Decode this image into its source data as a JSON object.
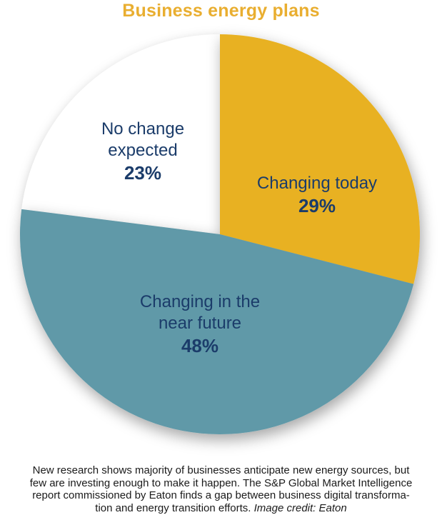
{
  "header": {
    "title": "Business energy plans"
  },
  "chart_data": {
    "type": "pie",
    "title": "Business energy plans",
    "start_angle_deg": 0,
    "direction": "clockwise",
    "legend_position": "labels-inside-slices",
    "slices": [
      {
        "label": "Changing today",
        "value": 29,
        "pct_label": "29%",
        "color": "#E8B122"
      },
      {
        "label": "Changing in the near future",
        "value": 48,
        "pct_label": "48%",
        "color": "#6099A8"
      },
      {
        "label": "No change expected",
        "value": 23,
        "pct_label": "23%",
        "color": "#FFFFFF"
      }
    ]
  },
  "caption": {
    "lines": [
      "New research shows majority of businesses anticipate new energy sources, but",
      "few are investing enough to make it happen. The S&P Global Market Intelligence",
      "report commissioned by Eaton finds a gap between business digital transforma-"
    ],
    "last_line": {
      "text": "tion and energy transition efforts. ",
      "credit": "Image credit: Eaton"
    }
  },
  "colors": {
    "title": "#E9AE30",
    "label_text": "#1B3C6A",
    "caption_text": "#1A1A1A",
    "slice_gold": "#E8B122",
    "slice_teal": "#6099A8",
    "slice_white": "#FFFFFF",
    "background": "#FFFFFF"
  }
}
